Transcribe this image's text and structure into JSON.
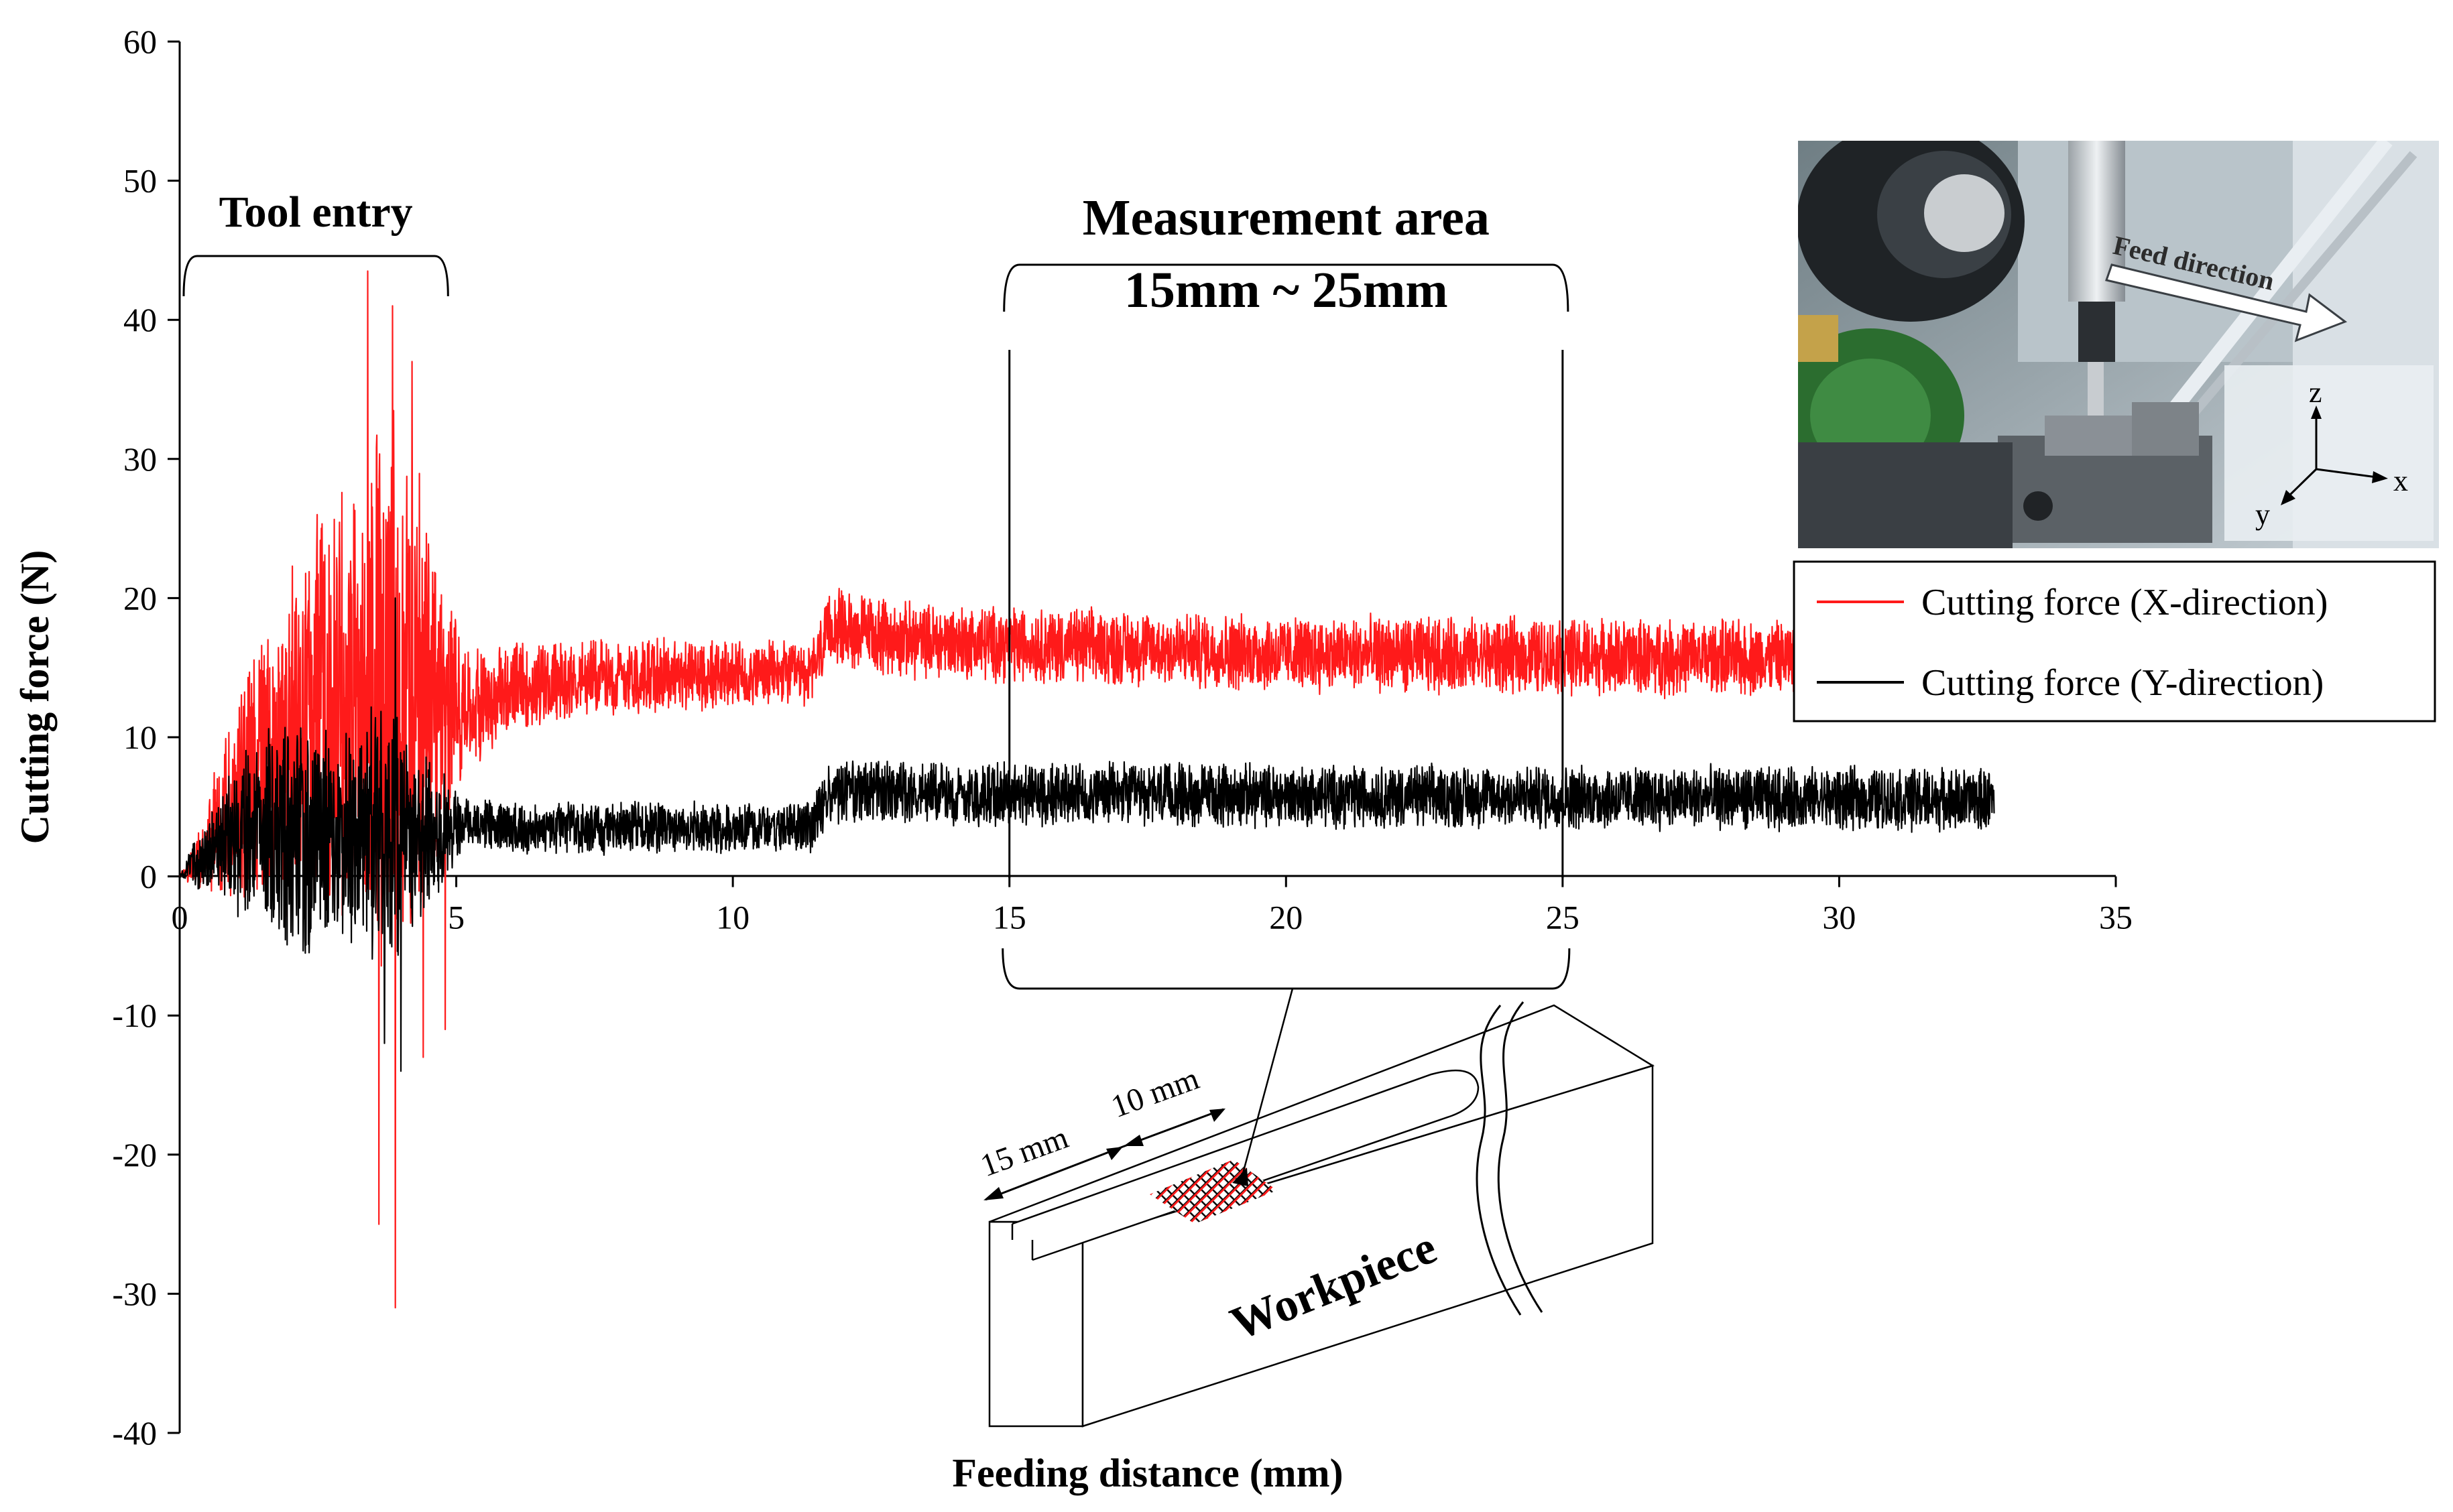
{
  "chart_data": {
    "type": "line",
    "title": "",
    "xlabel": "Feeding distance (mm)",
    "ylabel": "Cutting force (N)",
    "xlim": [
      0,
      35
    ],
    "ylim": [
      -40,
      60
    ],
    "x_ticks": [
      "0",
      "5",
      "10",
      "15",
      "20",
      "25",
      "30",
      "35"
    ],
    "y_ticks": [
      "60",
      "50",
      "40",
      "30",
      "20",
      "10",
      "0",
      "-10",
      "-20",
      "-30",
      "-40"
    ],
    "grid": false,
    "legend_position": "right",
    "x_end": 32.8,
    "series": [
      {
        "name": "Cutting force (X-direction)",
        "color": "#ff1a1a",
        "profile": [
          {
            "x": 0,
            "mean": 0,
            "amp": 0
          },
          {
            "x": 0.3,
            "mean": 1,
            "amp": 2
          },
          {
            "x": 1,
            "mean": 5,
            "amp": 8
          },
          {
            "x": 2,
            "mean": 10,
            "amp": 14
          },
          {
            "x": 3,
            "mean": 13,
            "amp": 18
          },
          {
            "x": 3.8,
            "mean": 14,
            "amp": 22
          },
          {
            "x": 4.5,
            "mean": 13,
            "amp": 16
          },
          {
            "x": 5.2,
            "mean": 12,
            "amp": 5
          },
          {
            "x": 6,
            "mean": 13.5,
            "amp": 3.5
          },
          {
            "x": 8,
            "mean": 14.5,
            "amp": 3
          },
          {
            "x": 11.4,
            "mean": 14.5,
            "amp": 2.5
          },
          {
            "x": 11.8,
            "mean": 18,
            "amp": 3
          },
          {
            "x": 13,
            "mean": 17,
            "amp": 3
          },
          {
            "x": 20,
            "mean": 16,
            "amp": 3
          },
          {
            "x": 32.8,
            "mean": 15.5,
            "amp": 3
          }
        ],
        "spikes": [
          [
            3.4,
            43.5
          ],
          [
            3.85,
            41
          ],
          [
            4.2,
            37
          ],
          [
            3.6,
            -25
          ],
          [
            3.9,
            -31
          ],
          [
            4.4,
            -13
          ],
          [
            4.8,
            -11
          ]
        ]
      },
      {
        "name": "Cutting force (Y-direction)",
        "color": "#000000",
        "profile": [
          {
            "x": 0,
            "mean": 0,
            "amp": 0
          },
          {
            "x": 0.3,
            "mean": 1,
            "amp": 2
          },
          {
            "x": 1,
            "mean": 3,
            "amp": 6
          },
          {
            "x": 2,
            "mean": 3,
            "amp": 9
          },
          {
            "x": 3,
            "mean": 3,
            "amp": 9
          },
          {
            "x": 3.8,
            "mean": 3,
            "amp": 10
          },
          {
            "x": 4.5,
            "mean": 3,
            "amp": 6
          },
          {
            "x": 5.2,
            "mean": 4,
            "amp": 2
          },
          {
            "x": 6,
            "mean": 3.5,
            "amp": 2
          },
          {
            "x": 8,
            "mean": 3.5,
            "amp": 2
          },
          {
            "x": 11.4,
            "mean": 3.5,
            "amp": 2
          },
          {
            "x": 11.8,
            "mean": 6,
            "amp": 2.5
          },
          {
            "x": 32.8,
            "mean": 5.5,
            "amp": 2.5
          }
        ],
        "spikes": [
          [
            3.9,
            20
          ],
          [
            4,
            -14
          ],
          [
            3.7,
            -12
          ]
        ]
      }
    ],
    "annotations": {
      "tool_entry": {
        "label": "Tool entry",
        "x_start": 0,
        "x_end": 4.9
      },
      "measurement_area": {
        "label": "Measurement area",
        "range_label": "15mm ~ 25mm",
        "x_start": 15,
        "x_end": 25
      }
    }
  },
  "inset_photo": {
    "feed_label": "Feed direction",
    "axis_z": "z",
    "axis_x": "x",
    "axis_y": "y"
  },
  "workpiece": {
    "label": "Workpiece",
    "dim_15": "15 mm",
    "dim_10": "10 mm"
  }
}
